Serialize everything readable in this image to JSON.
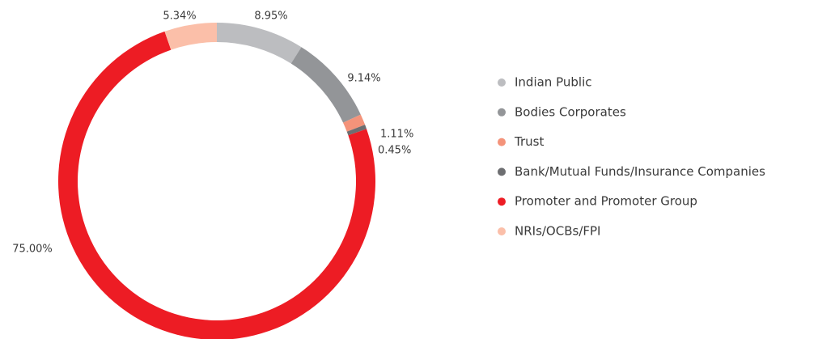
{
  "chart_data": {
    "type": "donut",
    "categories": [
      "Indian Public",
      "Bodies Corporates",
      "Trust",
      "Bank/Mutual Funds/Insurance Companies",
      "Promoter and Promoter Group",
      "NRIs/OCBs/FPI"
    ],
    "values": [
      8.95,
      9.14,
      1.11,
      0.45,
      75.0,
      5.34
    ],
    "value_labels": [
      "8.95%",
      "9.14%",
      "1.11%",
      "0.45%",
      "75.00%",
      "5.34%"
    ],
    "colors": [
      "#bcbdc0",
      "#939598",
      "#f4937a",
      "#6d6e71",
      "#ed1c24",
      "#fbbfa9"
    ],
    "legend": "right"
  }
}
